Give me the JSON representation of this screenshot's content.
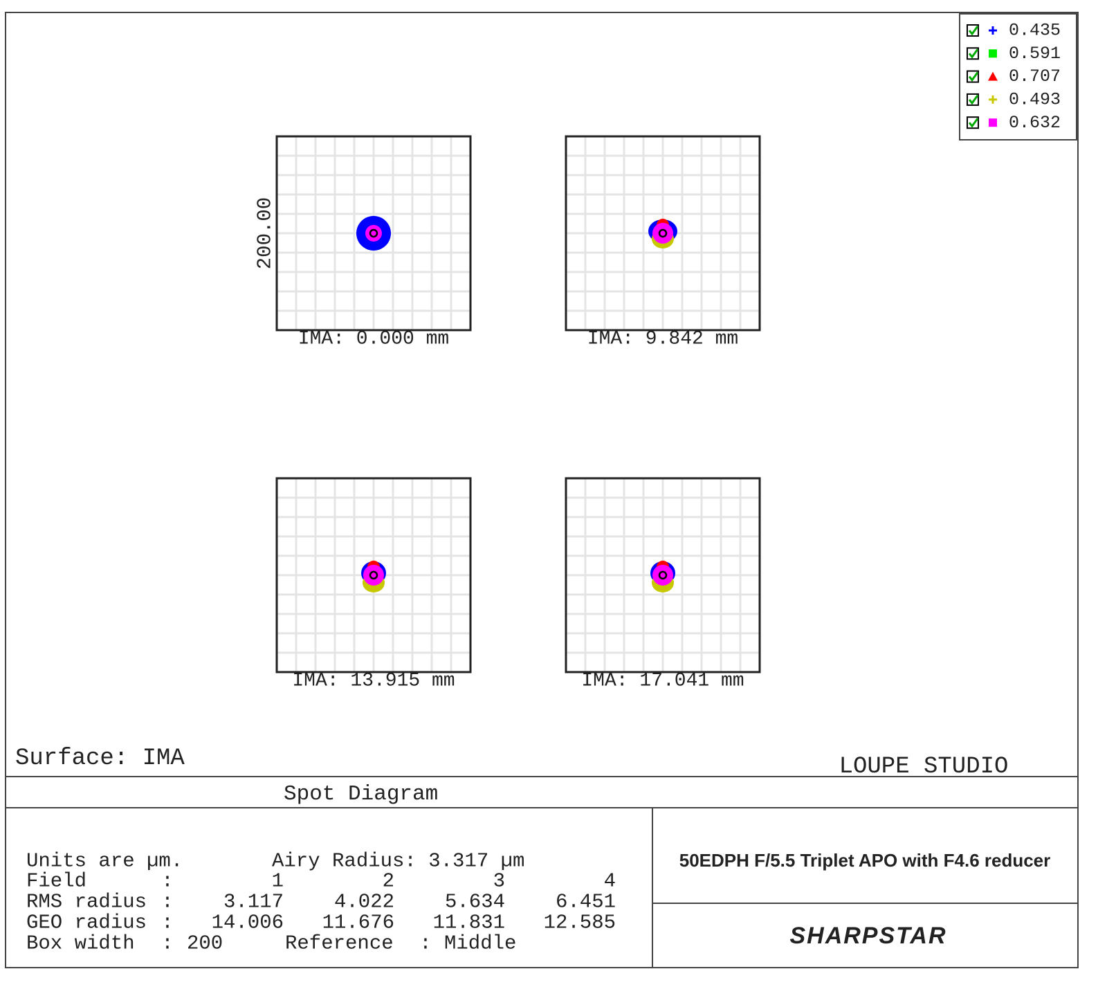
{
  "legend": {
    "items": [
      {
        "label": "0.435",
        "color": "#0000ff",
        "marker": "plus"
      },
      {
        "label": "0.591",
        "color": "#00ee00",
        "marker": "square"
      },
      {
        "label": "0.707",
        "color": "#ff0000",
        "marker": "triangle"
      },
      {
        "label": "0.493",
        "color": "#c8c800",
        "marker": "plus"
      },
      {
        "label": "0.632",
        "color": "#ff00ff",
        "marker": "square"
      }
    ]
  },
  "plot": {
    "axis_label": "200.00",
    "panels": [
      {
        "label": "IMA: 0.000 mm"
      },
      {
        "label": "IMA: 9.842 mm"
      },
      {
        "label": "IMA: 13.915 mm"
      },
      {
        "label": "IMA: 17.041 mm"
      }
    ]
  },
  "surface": "Surface: IMA",
  "watermark": "LOUPE STUDIO",
  "title": "Spot Diagram",
  "info": {
    "units": "Units are µm.",
    "airy": "Airy Radius: 3.317 µm",
    "rows": [
      [
        "Field",
        ":",
        "1",
        "2",
        "3",
        "4"
      ],
      [
        "RMS radius",
        ":",
        "3.117",
        "4.022",
        "5.634",
        "6.451"
      ],
      [
        "GEO radius",
        ":",
        "14.006",
        "11.676",
        "11.831",
        "12.585"
      ]
    ],
    "box_row": [
      "Box width",
      ":",
      "200",
      "Reference",
      ":",
      "Middle"
    ]
  },
  "product": "50EDPH F/5.5 Triplet APO with F4.6 reducer",
  "brand": "SHARPSTAR"
}
